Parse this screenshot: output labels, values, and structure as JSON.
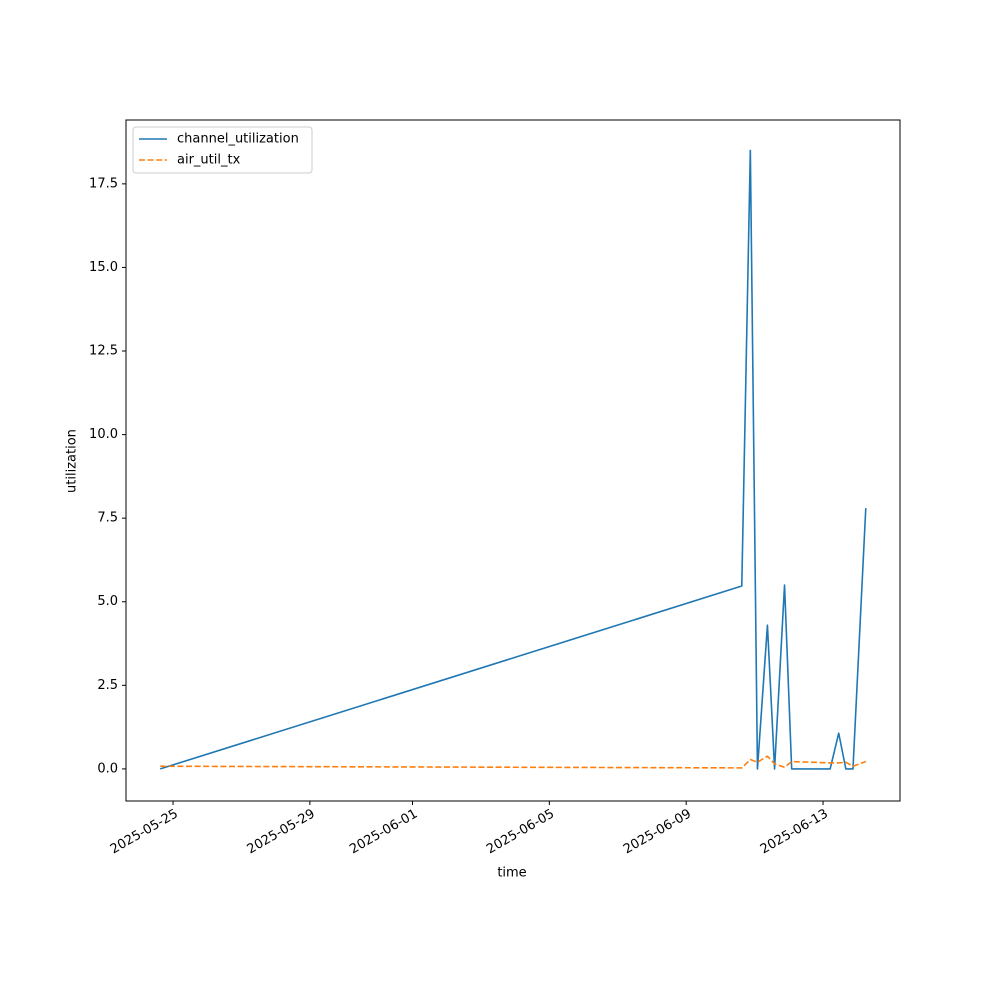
{
  "chart_data": {
    "type": "line",
    "xlabel": "time",
    "ylabel": "utilization",
    "x": [
      "2025-05-24T15:00",
      "2025-06-10T15:00",
      "2025-06-10T21:00",
      "2025-06-11T02:00",
      "2025-06-11T09:00",
      "2025-06-11T14:00",
      "2025-06-11T21:00",
      "2025-06-12T02:00",
      "2025-06-13T05:00",
      "2025-06-13T11:00",
      "2025-06-13T16:00",
      "2025-06-13T21:00",
      "2025-06-14T06:00"
    ],
    "series": [
      {
        "name": "channel_utilization",
        "color": "#1f77b4",
        "linestyle": "solid",
        "values": [
          0,
          5.47,
          18.5,
          0,
          4.3,
          0,
          5.5,
          0,
          0,
          1.07,
          0,
          0,
          7.8
        ]
      },
      {
        "name": "air_util_tx",
        "color": "#ff7f0e",
        "linestyle": "dashed",
        "values": [
          0.08,
          0.03,
          0.28,
          0.2,
          0.38,
          0.15,
          0.05,
          0.22,
          0.18,
          0.18,
          0.2,
          0.08,
          0.22
        ]
      }
    ],
    "xlim": [
      "2025-05-23T15:00",
      "2025-06-15T06:00"
    ],
    "xticks": [
      "2025-05-25",
      "2025-05-29",
      "2025-06-01",
      "2025-06-05",
      "2025-06-09",
      "2025-06-13"
    ],
    "ylim": [
      -0.96,
      19.41
    ],
    "yticks": [
      {
        "value": 0,
        "label": "0.0"
      },
      2.5,
      {
        "value": 5,
        "label": "5.0"
      },
      7.5,
      {
        "value": 10,
        "label": "10.0"
      },
      12.5,
      {
        "value": 15,
        "label": "15.0"
      },
      17.5
    ],
    "legend": "upper left",
    "grid": false
  }
}
